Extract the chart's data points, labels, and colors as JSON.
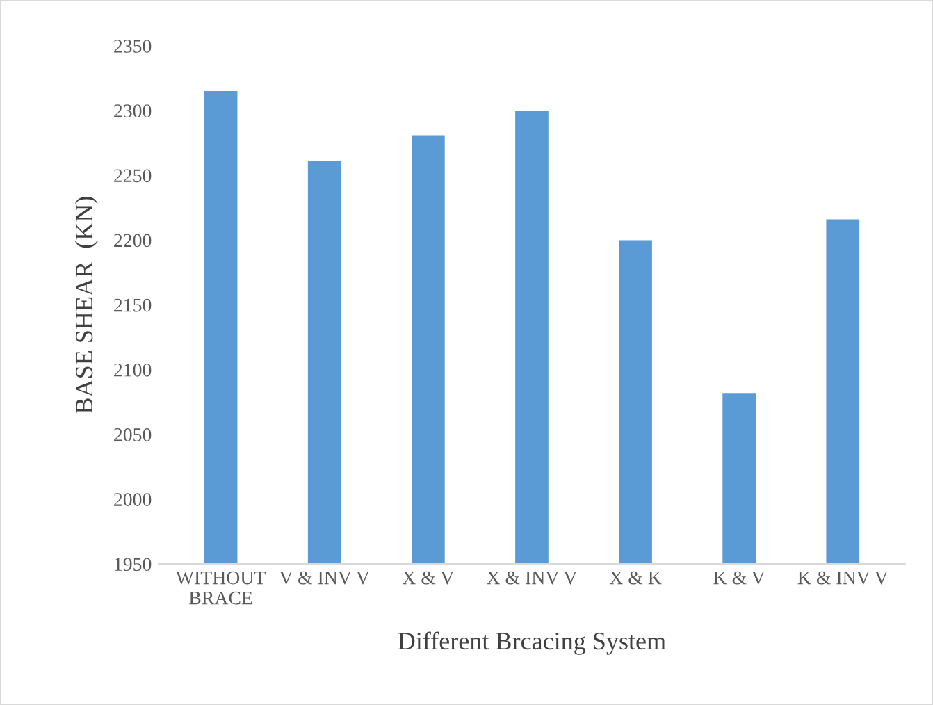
{
  "chart_data": {
    "type": "bar",
    "xlabel": "Different Brcacing System",
    "ylabel": "BASE SHEAR  (KN)",
    "categories": [
      "WITHOUT\nBRACE",
      "V & INV V",
      "X & V",
      "X & INV V",
      "X & K",
      "K & V",
      "K & INV V"
    ],
    "values": [
      2315,
      2261,
      2281,
      2300,
      2200,
      2082,
      2216
    ],
    "color": "#5b9bd5",
    "ylim": [
      1950,
      2350
    ],
    "yticks": [
      1950,
      2000,
      2050,
      2100,
      2150,
      2200,
      2250,
      2300,
      2350
    ],
    "grid": false
  }
}
